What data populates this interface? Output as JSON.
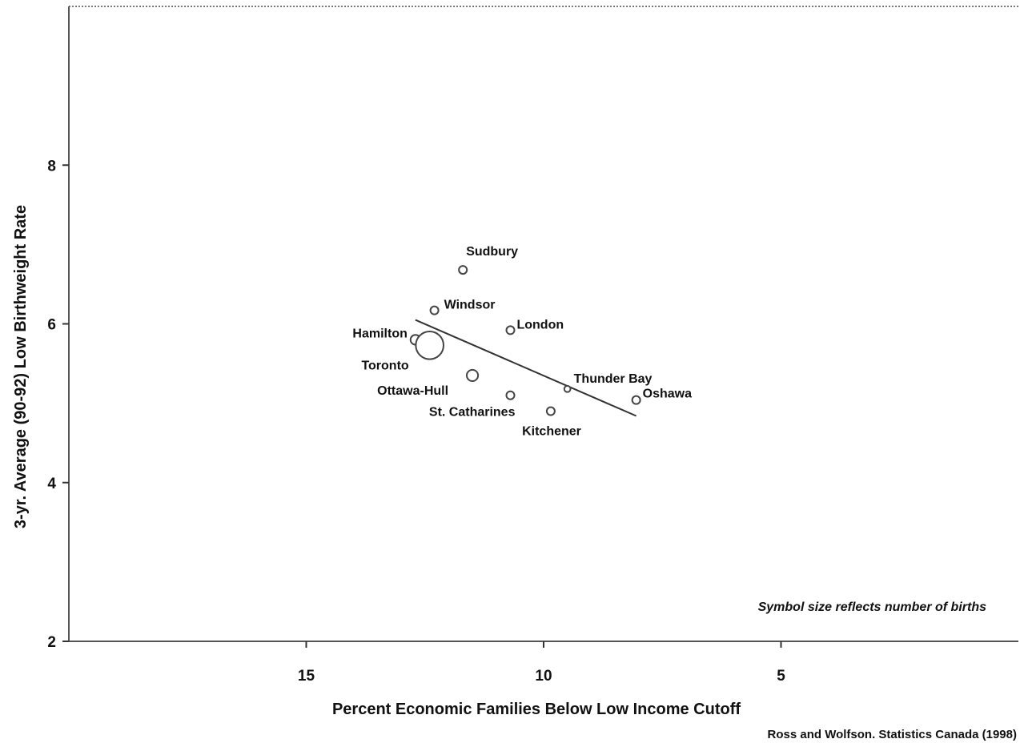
{
  "chart_data": {
    "type": "scatter",
    "xlabel": "Percent Economic Families Below Low Income Cutoff",
    "ylabel": "3-yr. Average (90-92) Low Birthweight Rate",
    "xlim": [
      20,
      0
    ],
    "ylim": [
      2,
      10
    ],
    "x_axis_reversed": true,
    "x_ticks": [
      15,
      10,
      5
    ],
    "x_tick_labels": [
      "15",
      "10",
      "5"
    ],
    "y_ticks": [
      2,
      4,
      6,
      8
    ],
    "y_tick_labels": [
      "2",
      "4",
      "6",
      "8"
    ],
    "grid": false,
    "note": "Symbol size reflects number of births",
    "source": "Ross and Wolfson. Statistics Canada (1998)",
    "points": [
      {
        "label": "Sudbury",
        "x": 11.7,
        "y": 6.68,
        "relative_births": 1
      },
      {
        "label": "Windsor",
        "x": 12.3,
        "y": 6.17,
        "relative_births": 1
      },
      {
        "label": "London",
        "x": 10.7,
        "y": 5.92,
        "relative_births": 1
      },
      {
        "label": "Hamilton",
        "x": 12.7,
        "y": 5.8,
        "relative_births": 1.5
      },
      {
        "label": "Toronto",
        "x": 12.4,
        "y": 5.73,
        "relative_births": 12
      },
      {
        "label": "Ottawa-Hull",
        "x": 11.5,
        "y": 5.35,
        "relative_births": 2
      },
      {
        "label": "Thunder Bay",
        "x": 9.5,
        "y": 5.18,
        "relative_births": 0.6
      },
      {
        "label": "St. Catharines",
        "x": 10.7,
        "y": 5.1,
        "relative_births": 1
      },
      {
        "label": "Oshawa",
        "x": 8.05,
        "y": 5.04,
        "relative_births": 1
      },
      {
        "label": "Kitchener",
        "x": 9.85,
        "y": 4.9,
        "relative_births": 1
      }
    ],
    "trend_line": {
      "x": [
        12.7,
        8.05
      ],
      "y": [
        6.05,
        4.84
      ]
    }
  }
}
